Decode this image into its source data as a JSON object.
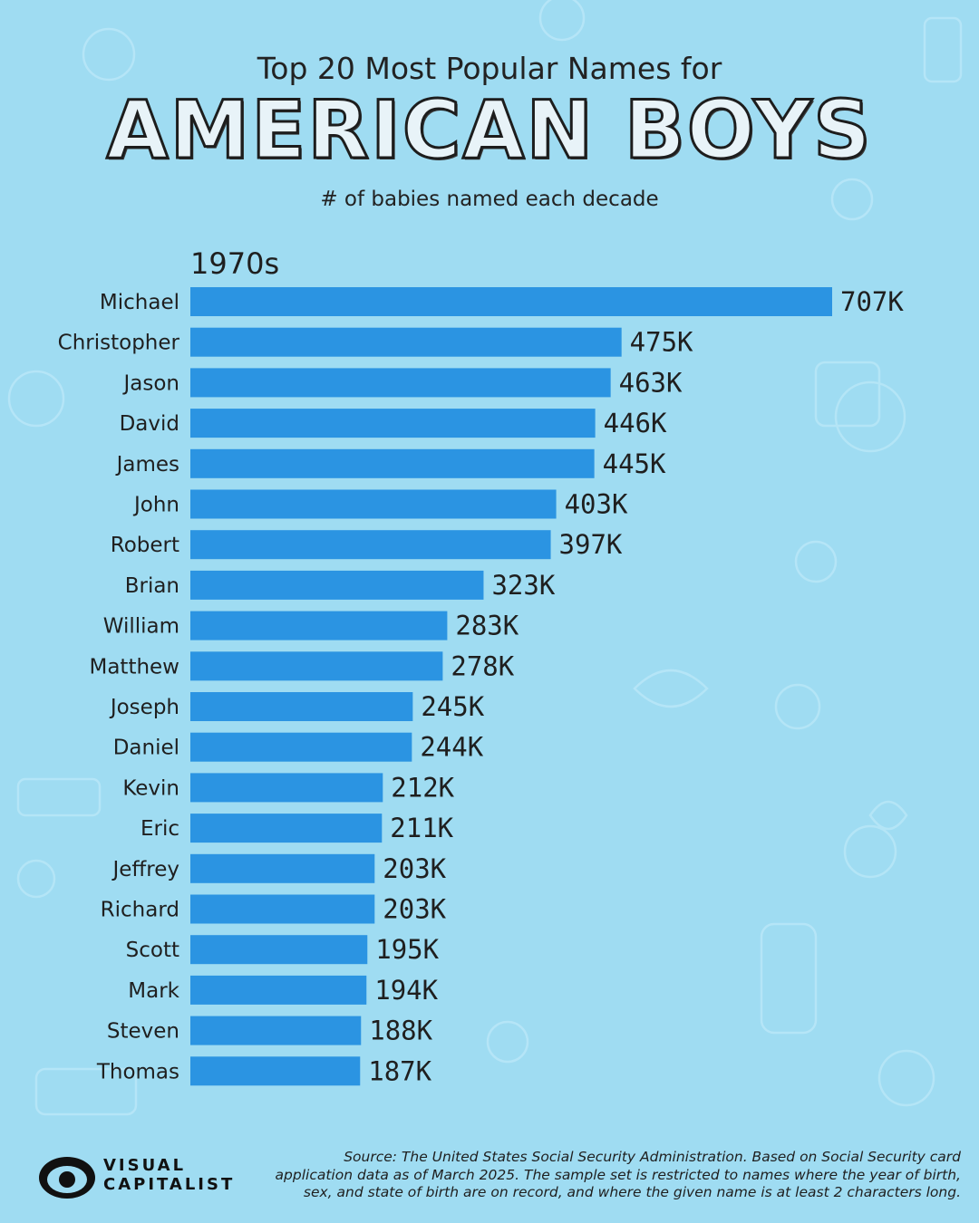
{
  "header": {
    "title_line1": "Top 20 Most Popular Names for",
    "title_line2": "AMERICAN BOYS",
    "subtitle": "# of babies named each decade"
  },
  "colors": {
    "background": "#9fdcf2",
    "bar": "#2b94e2",
    "text": "#1f1f1f"
  },
  "chart_data": {
    "type": "bar",
    "orientation": "horizontal",
    "title": "Top 20 Most Popular Names for AMERICAN BOYS",
    "subtitle": "# of babies named each decade",
    "panel_label": "1970s",
    "categories": [
      "Michael",
      "Christopher",
      "Jason",
      "David",
      "James",
      "John",
      "Robert",
      "Brian",
      "William",
      "Matthew",
      "Joseph",
      "Daniel",
      "Kevin",
      "Eric",
      "Jeffrey",
      "Richard",
      "Scott",
      "Mark",
      "Steven",
      "Thomas"
    ],
    "values": [
      707,
      475,
      463,
      446,
      445,
      403,
      397,
      323,
      283,
      278,
      245,
      244,
      212,
      211,
      203,
      203,
      195,
      194,
      188,
      187
    ],
    "value_labels": [
      "707K",
      "475K",
      "463K",
      "446K",
      "445K",
      "403K",
      "397K",
      "323K",
      "283K",
      "278K",
      "245K",
      "244K",
      "212K",
      "211K",
      "203K",
      "203K",
      "195K",
      "194K",
      "188K",
      "187K"
    ],
    "unit": "K",
    "xlim": [
      0,
      707
    ],
    "grid": false,
    "legend": "none"
  },
  "footer": {
    "brand_line1": "VISUAL",
    "brand_line2": "CAPITALIST",
    "source_line1": "Source: The United States Social Security Administration. Based on Social Security card",
    "source_line2": "application data as of March 2025. The sample set is restricted to names where the year of birth,",
    "source_line3": "sex, and state of birth are on record, and where the given name is at least 2 characters long."
  }
}
